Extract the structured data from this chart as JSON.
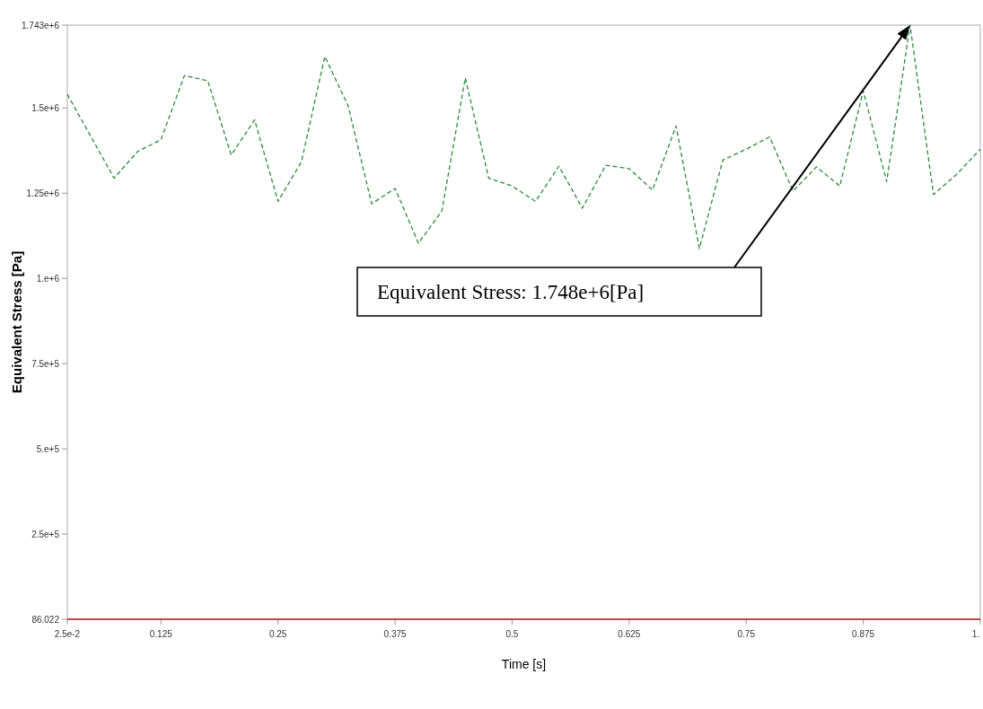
{
  "chart_data": {
    "type": "line",
    "xlabel": "Time  [s]",
    "ylabel": "Equivalent Stress [Pa]",
    "xlim": [
      0.025,
      1
    ],
    "xticks": [
      {
        "value": 0.025,
        "label": "2.5e-2"
      },
      0.125,
      0.25,
      0.375,
      0.5,
      0.625,
      0.75,
      0.875,
      {
        "value": 1,
        "label": "1."
      }
    ],
    "ylim": [
      86.022,
      1743000
    ],
    "yticks": [
      86.022,
      {
        "value": 250000,
        "label": "2.5e+5"
      },
      {
        "value": 500000,
        "label": "5.e+5"
      },
      {
        "value": 750000,
        "label": "7.5e+5"
      },
      {
        "value": 1000000,
        "label": "1.e+6"
      },
      {
        "value": 1250000,
        "label": "1.25e+6"
      },
      {
        "value": 1500000,
        "label": "1.5e+6"
      },
      {
        "value": 1743000,
        "label": "1.743e+6"
      }
    ],
    "grid": false,
    "series": [
      {
        "color": "#2e8b3a",
        "line_style": "dashed",
        "x": [
          0.025,
          0.05,
          0.075,
          0.1,
          0.125,
          0.15,
          0.175,
          0.2,
          0.225,
          0.25,
          0.275,
          0.3,
          0.325,
          0.35,
          0.375,
          0.4,
          0.425,
          0.45,
          0.475,
          0.5,
          0.525,
          0.55,
          0.575,
          0.6,
          0.625,
          0.65,
          0.675,
          0.7,
          0.725,
          0.75,
          0.775,
          0.8,
          0.825,
          0.85,
          0.875,
          0.9,
          0.925,
          0.95,
          0.975,
          1
        ],
        "values": [
          1540000,
          1417000,
          1294000,
          1372000,
          1407000,
          1595000,
          1580000,
          1362000,
          1465000,
          1226000,
          1342000,
          1651000,
          1505000,
          1219000,
          1264000,
          1103000,
          1198000,
          1588000,
          1294000,
          1271000,
          1226000,
          1329000,
          1206000,
          1332000,
          1322000,
          1259000,
          1447000,
          1088000,
          1347000,
          1379000,
          1415000,
          1256000,
          1327000,
          1271000,
          1550000,
          1284000,
          1743000,
          1246000,
          1306000,
          1379000
        ]
      },
      {
        "color": "#b01c1c",
        "line_style": "solid",
        "x": [
          0.025,
          1
        ],
        "values": [
          86.022,
          86.022
        ]
      }
    ],
    "annotations": [
      "Equivalent Stress: 1.748e+6[Pa]"
    ]
  }
}
